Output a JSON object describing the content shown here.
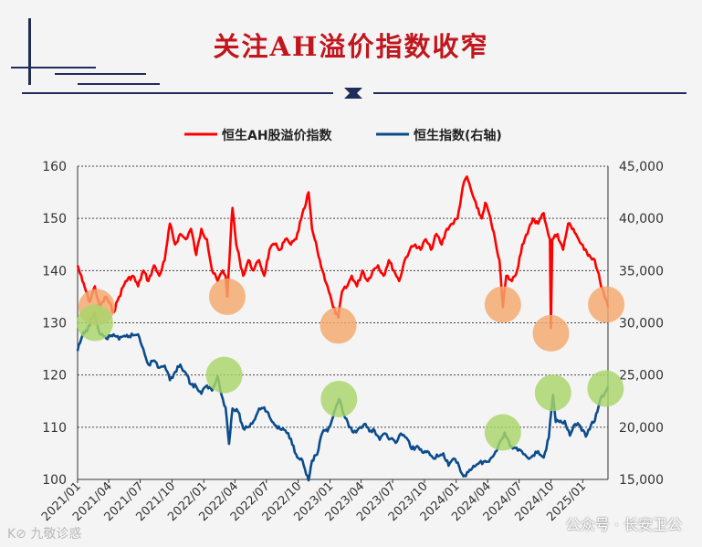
{
  "header": {
    "title": "关注AH溢价指数收窄"
  },
  "watermarks": {
    "left": "K⊘ 九敬诊惑",
    "right": "公众号 · 长安卫公"
  },
  "colors": {
    "title": "#c0161c",
    "ah_premium": "#ff0000",
    "hsi": "#0b4c8c",
    "circle_orange": "#f4a86c",
    "circle_green": "#a8d56a",
    "frame_navy": "#1f2d5a"
  },
  "chart_data": {
    "type": "line",
    "legend_position": "top",
    "grid": "horizontal-dashed",
    "x_ticks": [
      "2021/01",
      "2021/04",
      "2021/07",
      "2021/10",
      "2022/01",
      "2022/04",
      "2022/07",
      "2022/10",
      "2023/01",
      "2023/04",
      "2023/07",
      "2023/10",
      "2024/01",
      "2024/04",
      "2024/07",
      "2024/10",
      "2025/01"
    ],
    "x_range": [
      "2021-01-01",
      "2025-03-15"
    ],
    "y_left": {
      "min": 100,
      "max": 160,
      "ticks": [
        "100",
        "110",
        "120",
        "130",
        "140",
        "150",
        "160"
      ]
    },
    "y_right": {
      "min": 15000,
      "max": 45000,
      "ticks": [
        "15,000",
        "20,000",
        "25,000",
        "30,000",
        "35,000",
        "40,000",
        "45,000"
      ]
    },
    "series": [
      {
        "name": "恒生AH股溢价指数",
        "axis": "left",
        "points": [
          [
            "2021-01-01",
            141
          ],
          [
            "2021-01-15",
            138
          ],
          [
            "2021-02-05",
            134
          ],
          [
            "2021-02-20",
            137
          ],
          [
            "2021-03-05",
            133
          ],
          [
            "2021-03-25",
            135
          ],
          [
            "2021-04-15",
            132
          ],
          [
            "2021-05-01",
            135
          ],
          [
            "2021-05-20",
            138
          ],
          [
            "2021-06-10",
            139
          ],
          [
            "2021-06-25",
            137
          ],
          [
            "2021-07-10",
            140
          ],
          [
            "2021-07-25",
            138
          ],
          [
            "2021-08-10",
            141
          ],
          [
            "2021-08-25",
            139
          ],
          [
            "2021-09-10",
            142
          ],
          [
            "2021-09-25",
            149
          ],
          [
            "2021-10-10",
            145
          ],
          [
            "2021-10-25",
            147
          ],
          [
            "2021-11-10",
            146
          ],
          [
            "2021-11-25",
            148
          ],
          [
            "2021-12-10",
            143
          ],
          [
            "2021-12-25",
            148
          ],
          [
            "2022-01-10",
            146
          ],
          [
            "2022-01-25",
            140
          ],
          [
            "2022-02-10",
            138
          ],
          [
            "2022-02-25",
            140
          ],
          [
            "2022-03-05",
            139
          ],
          [
            "2022-03-10",
            135
          ],
          [
            "2022-03-20",
            147
          ],
          [
            "2022-03-25",
            152
          ],
          [
            "2022-04-05",
            145
          ],
          [
            "2022-04-15",
            142
          ],
          [
            "2022-04-25",
            139
          ],
          [
            "2022-05-10",
            142
          ],
          [
            "2022-05-25",
            140
          ],
          [
            "2022-06-10",
            142
          ],
          [
            "2022-06-25",
            139
          ],
          [
            "2022-07-10",
            144
          ],
          [
            "2022-07-25",
            145
          ],
          [
            "2022-08-10",
            144
          ],
          [
            "2022-08-25",
            146
          ],
          [
            "2022-09-10",
            145
          ],
          [
            "2022-09-25",
            146
          ],
          [
            "2022-10-10",
            150
          ],
          [
            "2022-10-20",
            152
          ],
          [
            "2022-10-31",
            155
          ],
          [
            "2022-11-10",
            148
          ],
          [
            "2022-11-25",
            144
          ],
          [
            "2022-12-10",
            140
          ],
          [
            "2022-12-25",
            137
          ],
          [
            "2023-01-10",
            133
          ],
          [
            "2023-01-25",
            131
          ],
          [
            "2023-02-05",
            136
          ],
          [
            "2023-02-20",
            137
          ],
          [
            "2023-03-05",
            139
          ],
          [
            "2023-03-20",
            137
          ],
          [
            "2023-04-05",
            140
          ],
          [
            "2023-04-20",
            138
          ],
          [
            "2023-05-05",
            140
          ],
          [
            "2023-05-20",
            141
          ],
          [
            "2023-06-05",
            139
          ],
          [
            "2023-06-20",
            142
          ],
          [
            "2023-07-05",
            140
          ],
          [
            "2023-07-20",
            138
          ],
          [
            "2023-08-05",
            142
          ],
          [
            "2023-08-20",
            144
          ],
          [
            "2023-09-05",
            145
          ],
          [
            "2023-09-20",
            144
          ],
          [
            "2023-10-05",
            146
          ],
          [
            "2023-10-20",
            144
          ],
          [
            "2023-11-05",
            147
          ],
          [
            "2023-11-20",
            145
          ],
          [
            "2023-12-05",
            148
          ],
          [
            "2023-12-20",
            149
          ],
          [
            "2024-01-05",
            150
          ],
          [
            "2024-01-20",
            156
          ],
          [
            "2024-02-01",
            158
          ],
          [
            "2024-02-15",
            155
          ],
          [
            "2024-03-01",
            152
          ],
          [
            "2024-03-15",
            150
          ],
          [
            "2024-03-25",
            153
          ],
          [
            "2024-04-05",
            151
          ],
          [
            "2024-04-15",
            148
          ],
          [
            "2024-04-25",
            145
          ],
          [
            "2024-05-05",
            142
          ],
          [
            "2024-05-15",
            133
          ],
          [
            "2024-05-25",
            139
          ],
          [
            "2024-06-10",
            138
          ],
          [
            "2024-06-25",
            140
          ],
          [
            "2024-07-10",
            145
          ],
          [
            "2024-07-25",
            147
          ],
          [
            "2024-08-10",
            150
          ],
          [
            "2024-08-25",
            149
          ],
          [
            "2024-09-10",
            151
          ],
          [
            "2024-09-20",
            148
          ],
          [
            "2024-09-28",
            146
          ],
          [
            "2024-10-01",
            129
          ],
          [
            "2024-10-05",
            146
          ],
          [
            "2024-10-20",
            147
          ],
          [
            "2024-11-05",
            144
          ],
          [
            "2024-11-20",
            149
          ],
          [
            "2024-12-05",
            148
          ],
          [
            "2024-12-20",
            146
          ],
          [
            "2025-01-05",
            144
          ],
          [
            "2025-01-20",
            143
          ],
          [
            "2025-02-05",
            142
          ],
          [
            "2025-02-20",
            138
          ],
          [
            "2025-03-05",
            135
          ],
          [
            "2025-03-15",
            133
          ]
        ]
      },
      {
        "name": "恒生指数(右轴)",
        "axis": "right",
        "points": [
          [
            "2021-01-01",
            27300
          ],
          [
            "2021-01-15",
            28800
          ],
          [
            "2021-02-05",
            29700
          ],
          [
            "2021-02-18",
            31000
          ],
          [
            "2021-03-05",
            29000
          ],
          [
            "2021-03-25",
            28500
          ],
          [
            "2021-04-15",
            28900
          ],
          [
            "2021-05-01",
            28400
          ],
          [
            "2021-05-20",
            28700
          ],
          [
            "2021-06-10",
            28800
          ],
          [
            "2021-06-25",
            28900
          ],
          [
            "2021-07-10",
            27500
          ],
          [
            "2021-07-25",
            26000
          ],
          [
            "2021-08-10",
            26400
          ],
          [
            "2021-08-25",
            25700
          ],
          [
            "2021-09-10",
            25900
          ],
          [
            "2021-09-25",
            24500
          ],
          [
            "2021-10-10",
            25300
          ],
          [
            "2021-10-25",
            26000
          ],
          [
            "2021-11-10",
            25200
          ],
          [
            "2021-11-25",
            24100
          ],
          [
            "2021-12-10",
            23900
          ],
          [
            "2021-12-25",
            23200
          ],
          [
            "2022-01-10",
            24000
          ],
          [
            "2022-01-25",
            23500
          ],
          [
            "2022-02-10",
            24900
          ],
          [
            "2022-02-25",
            22700
          ],
          [
            "2022-03-05",
            21900
          ],
          [
            "2022-03-15",
            18400
          ],
          [
            "2022-03-25",
            21800
          ],
          [
            "2022-04-10",
            21500
          ],
          [
            "2022-04-25",
            19900
          ],
          [
            "2022-05-10",
            20000
          ],
          [
            "2022-05-25",
            20600
          ],
          [
            "2022-06-10",
            21800
          ],
          [
            "2022-06-25",
            21900
          ],
          [
            "2022-07-10",
            21000
          ],
          [
            "2022-07-25",
            20200
          ],
          [
            "2022-08-10",
            19800
          ],
          [
            "2022-08-25",
            19700
          ],
          [
            "2022-09-10",
            18900
          ],
          [
            "2022-09-25",
            17400
          ],
          [
            "2022-10-10",
            17000
          ],
          [
            "2022-10-31",
            14900
          ],
          [
            "2022-11-10",
            16800
          ],
          [
            "2022-11-25",
            17400
          ],
          [
            "2022-12-10",
            19500
          ],
          [
            "2022-12-25",
            19600
          ],
          [
            "2023-01-10",
            21000
          ],
          [
            "2023-01-27",
            22700
          ],
          [
            "2023-02-10",
            21200
          ],
          [
            "2023-02-25",
            20000
          ],
          [
            "2023-03-10",
            19500
          ],
          [
            "2023-03-25",
            19900
          ],
          [
            "2023-04-10",
            20300
          ],
          [
            "2023-04-25",
            19600
          ],
          [
            "2023-05-10",
            19700
          ],
          [
            "2023-05-25",
            18800
          ],
          [
            "2023-06-10",
            19400
          ],
          [
            "2023-06-25",
            18900
          ],
          [
            "2023-07-10",
            18500
          ],
          [
            "2023-07-25",
            19400
          ],
          [
            "2023-08-10",
            19000
          ],
          [
            "2023-08-25",
            17900
          ],
          [
            "2023-09-10",
            18200
          ],
          [
            "2023-09-25",
            17600
          ],
          [
            "2023-10-10",
            17700
          ],
          [
            "2023-10-25",
            17100
          ],
          [
            "2023-11-10",
            17200
          ],
          [
            "2023-11-25",
            17500
          ],
          [
            "2023-12-10",
            16300
          ],
          [
            "2023-12-25",
            17000
          ],
          [
            "2024-01-10",
            16200
          ],
          [
            "2024-01-22",
            15300
          ],
          [
            "2024-02-05",
            15700
          ],
          [
            "2024-02-20",
            16300
          ],
          [
            "2024-03-05",
            16500
          ],
          [
            "2024-03-20",
            16700
          ],
          [
            "2024-04-05",
            16700
          ],
          [
            "2024-04-20",
            17400
          ],
          [
            "2024-05-05",
            18500
          ],
          [
            "2024-05-20",
            19500
          ],
          [
            "2024-06-05",
            18200
          ],
          [
            "2024-06-20",
            18000
          ],
          [
            "2024-07-05",
            17800
          ],
          [
            "2024-07-25",
            17100
          ],
          [
            "2024-08-10",
            17300
          ],
          [
            "2024-08-25",
            17700
          ],
          [
            "2024-09-10",
            17100
          ],
          [
            "2024-09-25",
            19000
          ],
          [
            "2024-10-07",
            23100
          ],
          [
            "2024-10-15",
            20500
          ],
          [
            "2024-10-25",
            20500
          ],
          [
            "2024-11-10",
            20600
          ],
          [
            "2024-11-25",
            19200
          ],
          [
            "2024-12-10",
            20300
          ],
          [
            "2024-12-25",
            20100
          ],
          [
            "2025-01-10",
            19100
          ],
          [
            "2025-01-25",
            20200
          ],
          [
            "2025-02-05",
            20600
          ],
          [
            "2025-02-20",
            22600
          ],
          [
            "2025-03-05",
            23200
          ],
          [
            "2025-03-15",
            23900
          ]
        ]
      }
    ],
    "annotations": [
      {
        "kind": "circle",
        "color": "orange",
        "date": "2021-02-25",
        "axis": "left",
        "value": 133
      },
      {
        "kind": "circle",
        "color": "orange",
        "date": "2022-03-10",
        "axis": "left",
        "value": 135
      },
      {
        "kind": "circle",
        "color": "orange",
        "date": "2023-01-25",
        "axis": "left",
        "value": 129.5
      },
      {
        "kind": "circle",
        "color": "orange",
        "date": "2024-05-15",
        "axis": "left",
        "value": 133.5
      },
      {
        "kind": "circle",
        "color": "orange",
        "date": "2024-10-01",
        "axis": "left",
        "value": 128
      },
      {
        "kind": "circle",
        "color": "orange",
        "date": "2025-03-10",
        "axis": "left",
        "value": 133.5
      },
      {
        "kind": "circle",
        "color": "green",
        "date": "2021-02-20",
        "axis": "right",
        "value": 30000
      },
      {
        "kind": "circle",
        "color": "green",
        "date": "2022-03-01",
        "axis": "right",
        "value": 25000
      },
      {
        "kind": "circle",
        "color": "green",
        "date": "2023-01-27",
        "axis": "right",
        "value": 22700
      },
      {
        "kind": "circle",
        "color": "green",
        "date": "2024-05-15",
        "axis": "right",
        "value": 19500
      },
      {
        "kind": "circle",
        "color": "green",
        "date": "2024-10-07",
        "axis": "right",
        "value": 23300
      },
      {
        "kind": "circle",
        "color": "green",
        "date": "2025-03-08",
        "axis": "right",
        "value": 23700
      }
    ]
  }
}
